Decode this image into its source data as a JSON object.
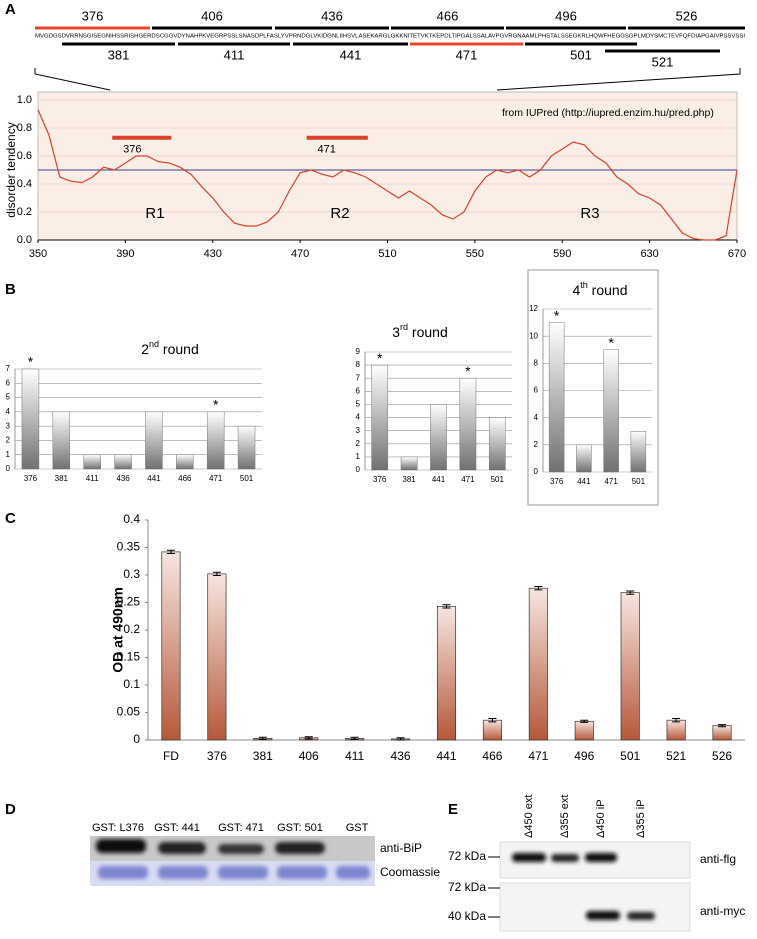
{
  "panel_labels": [
    "A",
    "B",
    "C",
    "D",
    "E"
  ],
  "peptides": {
    "sequence": "MVGDGSDVRRNSGISEGNIHSSRISHGERDSCGGVDYNAHPKVEGRPSSLSNASDPLFASLYVPRNDGLVKIDGNLIIHSVLASEKARGLGKKNITETVKTKEPDLTIPGALSSALAVPGVRGNAAMLPHSTALSSEGKRLHQWFHEGGSGPLMDYSMCTEVFQFDIAPGAIVPSSVSSI",
    "top": [
      {
        "label": "376",
        "color": "#e8452c"
      },
      {
        "label": "406",
        "color": "#000000"
      },
      {
        "label": "436",
        "color": "#000000"
      },
      {
        "label": "466",
        "color": "#000000"
      },
      {
        "label": "496",
        "color": "#000000"
      },
      {
        "label": "526",
        "color": "#000000"
      }
    ],
    "bottom": [
      {
        "label": "381",
        "color": "#000000"
      },
      {
        "label": "411",
        "color": "#000000"
      },
      {
        "label": "441",
        "color": "#000000"
      },
      {
        "label": "471",
        "color": "#e8452c"
      },
      {
        "label": "501",
        "color": "#000000"
      },
      {
        "label": "521",
        "color": "#000000"
      }
    ]
  },
  "chart_data": [
    {
      "type": "line",
      "ylabel": "disorder tendency",
      "annotation": "from IUPred (http://iupred.enzim.hu/pred.php)",
      "x": [
        350,
        355,
        360,
        365,
        370,
        375,
        380,
        385,
        390,
        395,
        400,
        405,
        410,
        415,
        420,
        425,
        430,
        435,
        440,
        445,
        450,
        455,
        460,
        465,
        470,
        475,
        480,
        485,
        490,
        495,
        500,
        505,
        510,
        515,
        520,
        525,
        530,
        535,
        540,
        545,
        550,
        555,
        560,
        565,
        570,
        575,
        580,
        585,
        590,
        595,
        600,
        605,
        610,
        615,
        620,
        625,
        630,
        635,
        640,
        645,
        650,
        655,
        660,
        665,
        670
      ],
      "values": [
        0.93,
        0.75,
        0.45,
        0.42,
        0.41,
        0.45,
        0.52,
        0.5,
        0.55,
        0.6,
        0.6,
        0.56,
        0.55,
        0.52,
        0.47,
        0.38,
        0.3,
        0.2,
        0.12,
        0.1,
        0.1,
        0.13,
        0.2,
        0.35,
        0.48,
        0.5,
        0.47,
        0.45,
        0.5,
        0.48,
        0.45,
        0.4,
        0.35,
        0.3,
        0.35,
        0.3,
        0.25,
        0.18,
        0.15,
        0.2,
        0.35,
        0.45,
        0.5,
        0.48,
        0.5,
        0.45,
        0.5,
        0.6,
        0.65,
        0.7,
        0.68,
        0.6,
        0.55,
        0.45,
        0.4,
        0.33,
        0.3,
        0.25,
        0.15,
        0.05,
        0.01,
        0,
        0,
        0.03,
        0.5
      ],
      "color": "#d9432b",
      "xlim": [
        350,
        670
      ],
      "ylim": [
        0,
        1
      ],
      "xticks": [
        350,
        390,
        430,
        470,
        510,
        550,
        590,
        630,
        670
      ],
      "yticks": [
        {
          "value": 0,
          "label": "0.0"
        },
        0.2,
        0.4,
        0.6,
        0.8,
        {
          "value": 1,
          "label": "1.0"
        }
      ],
      "threshold": 0.5,
      "threshold_color": "#3a3f8f",
      "background": "#fbeee6",
      "regions": [
        "R1",
        "R2",
        "R3"
      ],
      "peptide_marks": [
        {
          "label": "376",
          "x": [
            384,
            411
          ],
          "y": 0.73
        },
        {
          "label": "471",
          "x": [
            473,
            501
          ],
          "y": 0.73
        }
      ],
      "mark_color": "#d9432b"
    },
    {
      "type": "bar",
      "title": [
        "2",
        "nd",
        " round"
      ],
      "categories": [
        "376",
        "381",
        "411",
        "436",
        "441",
        "466",
        "471",
        "501"
      ],
      "values": [
        7,
        4,
        1,
        1,
        4,
        1,
        4,
        3
      ],
      "ylim": [
        0,
        7
      ],
      "yticks": [
        0,
        1,
        2,
        3,
        4,
        5,
        6,
        7
      ],
      "grid": true,
      "annotations": [
        {
          "text": "*",
          "category": "376"
        },
        {
          "text": "*",
          "category": "471"
        }
      ],
      "star_color": "#d9432b"
    },
    {
      "type": "bar",
      "title": [
        "3",
        "rd",
        " round"
      ],
      "categories": [
        "376",
        "381",
        "441",
        "471",
        "501"
      ],
      "values": [
        8,
        1,
        5,
        7,
        4
      ],
      "ylim": [
        0,
        9
      ],
      "yticks": [
        0,
        1,
        2,
        3,
        4,
        5,
        6,
        7,
        8,
        9
      ],
      "grid": true,
      "annotations": [
        {
          "text": "*",
          "category": "376"
        },
        {
          "text": "*",
          "category": "471"
        }
      ],
      "star_color": "#d9432b"
    },
    {
      "type": "bar",
      "title": [
        "4",
        "th",
        " round"
      ],
      "categories": [
        "376",
        "441",
        "471",
        "501"
      ],
      "values": [
        11,
        2,
        9,
        3
      ],
      "ylim": [
        0,
        12
      ],
      "yticks": [
        0,
        2,
        4,
        6,
        8,
        10,
        12
      ],
      "grid": true,
      "annotations": [
        {
          "text": "*",
          "category": "376"
        },
        {
          "text": "*",
          "category": "471"
        }
      ],
      "star_color": "#d9432b"
    },
    {
      "type": "errorbar",
      "ylabel": "OD at 490nm",
      "categories": [
        "FD",
        "376",
        "381",
        "406",
        "411",
        "436",
        "441",
        "466",
        "471",
        "496",
        "501",
        "521",
        "526"
      ],
      "values": [
        0.342,
        0.302,
        0.003,
        0.004,
        0.003,
        0.002,
        0.243,
        0.036,
        0.276,
        0.034,
        0.268,
        0.036,
        0.026
      ],
      "errors": [
        0.003,
        0.003,
        0.002,
        0.002,
        0.002,
        0.002,
        0.003,
        0.003,
        0.003,
        0.002,
        0.003,
        0.003,
        0.002
      ],
      "ylim": [
        0,
        0.4
      ],
      "yticks": [
        0,
        0.05,
        0.1,
        0.15,
        0.2,
        0.25,
        0.3,
        0.35,
        0.4
      ],
      "color": "#b5583a"
    }
  ],
  "pulldown": {
    "lanes": [
      "GST: L376",
      "GST: 441",
      "GST: 471",
      "GST: 501",
      "GST"
    ],
    "bands": [
      "anti-BiP",
      "Coomassie"
    ]
  },
  "immunoblot": {
    "lanes": [
      "Δ450 ext",
      "Δ355 ext",
      "Δ450 iP",
      "Δ355 iP"
    ],
    "markers_top": [
      "72 kDa"
    ],
    "markers_bottom": [
      "72 kDa",
      "40 kDa"
    ],
    "antibodies": [
      "anti-flg",
      "anti-myc"
    ]
  }
}
